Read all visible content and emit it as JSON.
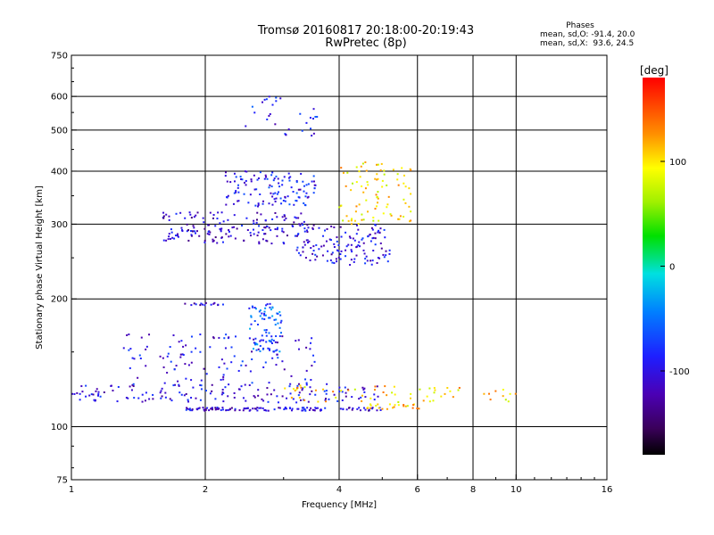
{
  "chart_data": {
    "type": "scatter",
    "title": "Tromsø 20160817 20:18:00-20:19:43",
    "subtitle": "RwPretec (8p)",
    "xlabel": "Frequency [MHz]",
    "ylabel": "Stationary phase Virtual Height [km]",
    "x_scale": "log",
    "y_scale": "log",
    "xlim": [
      1,
      16
    ],
    "ylim": [
      75,
      750
    ],
    "x_ticks": [
      1,
      2,
      4,
      6,
      8,
      10,
      16
    ],
    "y_ticks": [
      75,
      100,
      200,
      300,
      400,
      500,
      600,
      750
    ],
    "grid": true,
    "legend_header": "Phases",
    "legend_lines": [
      "mean, sd,O: -91.4, 20.0",
      "mean, sd,X:  93.6, 24.5"
    ],
    "legend_placement": "top-right",
    "colorbar": {
      "label": "[deg]",
      "ticks": [
        100,
        0,
        -100
      ],
      "range": [
        -180,
        180
      ],
      "colormap": "rainbow (black-purple-blue-cyan-green-yellow-red)"
    },
    "clusters": [
      {
        "name": "F2 O-mode trace (low freq)",
        "x_range": [
          1.6,
          3.4
        ],
        "y_range": [
          270,
          320
        ],
        "phase_deg": -110,
        "count": 160
      },
      {
        "name": "F2 O-mode rising trace",
        "x_range": [
          3.2,
          5.2
        ],
        "y_range": [
          240,
          300
        ],
        "phase_deg": -100,
        "count": 140
      },
      {
        "name": "F2 upper spread",
        "x_range": [
          2.2,
          3.6
        ],
        "y_range": [
          330,
          400
        ],
        "phase_deg": -90,
        "count": 120
      },
      {
        "name": "F2 top spread",
        "x_range": [
          2.4,
          3.6
        ],
        "y_range": [
          480,
          600
        ],
        "phase_deg": -90,
        "count": 30
      },
      {
        "name": "F2 X-mode trace",
        "x_range": [
          4.0,
          5.8
        ],
        "y_range": [
          300,
          420
        ],
        "phase_deg": 100,
        "count": 90
      },
      {
        "name": "E/Es band ~110 km",
        "x_range": [
          1.8,
          5.0
        ],
        "y_range": [
          109,
          111
        ],
        "phase_deg": -105,
        "count": 120
      },
      {
        "name": "Es X-mode ~110 km",
        "x_range": [
          4.6,
          6.2
        ],
        "y_range": [
          110,
          113
        ],
        "phase_deg": 110,
        "count": 25
      },
      {
        "name": "Spread Es 115-125 km",
        "x_range": [
          1.0,
          5.0
        ],
        "y_range": [
          114,
          126
        ],
        "phase_deg": -100,
        "count": 150
      },
      {
        "name": "Spread Es X-mode",
        "x_range": [
          3.0,
          10.6
        ],
        "y_range": [
          114,
          125
        ],
        "phase_deg": 105,
        "count": 60
      },
      {
        "name": "Spread 130-160 km",
        "x_range": [
          1.3,
          3.6
        ],
        "y_range": [
          125,
          165
        ],
        "phase_deg": -95,
        "count": 120
      },
      {
        "name": "Cusp ~190 km",
        "x_range": [
          2.5,
          3.0
        ],
        "y_range": [
          150,
          195
        ],
        "phase_deg": -60,
        "count": 80
      },
      {
        "name": "Line ~195 km",
        "x_range": [
          1.8,
          2.2
        ],
        "y_range": [
          193,
          196
        ],
        "phase_deg": -110,
        "count": 15
      }
    ]
  }
}
